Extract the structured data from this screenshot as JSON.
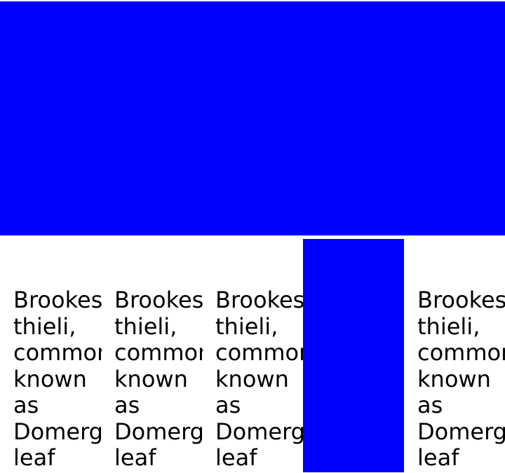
{
  "banner": {
    "color": "#0000ff"
  },
  "block": {
    "color": "#0000ff"
  },
  "columns": [
    {
      "lines": [
        "Brookes",
        "thieli,",
        "commonly",
        "known",
        "as",
        "Domergue's",
        "leaf"
      ]
    },
    {
      "lines": [
        "Brookes",
        "thieli,",
        "commonly",
        "known",
        "as",
        "Domergue's",
        "leaf"
      ]
    },
    {
      "lines": [
        "Brookes",
        "thieli,",
        "commonly",
        "known",
        "as",
        "Domergue's",
        "leaf"
      ]
    },
    {
      "lines": [
        "Brookes",
        "thieli,",
        "commonly",
        "known",
        "as",
        "Domergue's",
        "leaf"
      ]
    }
  ]
}
